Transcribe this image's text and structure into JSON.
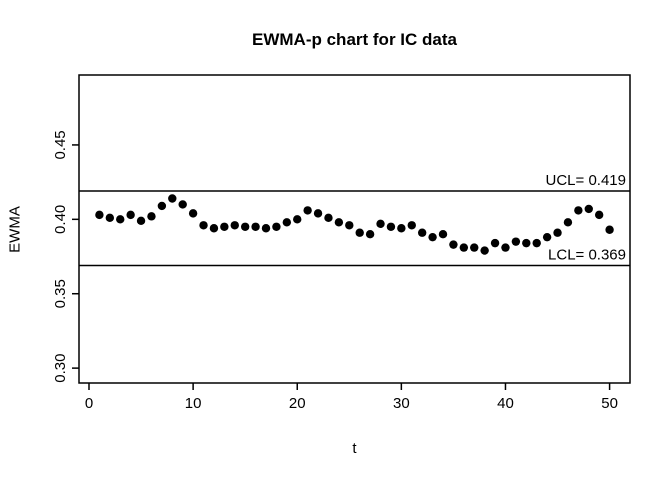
{
  "chart_data": {
    "type": "scatter",
    "title": "EWMA-p chart for IC data",
    "xlabel": "t",
    "ylabel": "EWMA",
    "x_ticks": [
      0,
      10,
      20,
      30,
      40,
      50
    ],
    "y_ticks": [
      "0.30",
      "0.35",
      "0.40",
      "0.45"
    ],
    "xlim": [
      -0.96,
      51.96
    ],
    "ylim": [
      0.29,
      0.497
    ],
    "grid": false,
    "series": [
      {
        "name": "EWMA",
        "x": [
          1,
          2,
          3,
          4,
          5,
          6,
          7,
          8,
          9,
          10,
          11,
          12,
          13,
          14,
          15,
          16,
          17,
          18,
          19,
          20,
          21,
          22,
          23,
          24,
          25,
          26,
          27,
          28,
          29,
          30,
          31,
          32,
          33,
          34,
          35,
          36,
          37,
          38,
          39,
          40,
          41,
          42,
          43,
          44,
          45,
          46,
          47,
          48,
          49,
          50
        ],
        "y": [
          0.403,
          0.401,
          0.4,
          0.403,
          0.399,
          0.402,
          0.409,
          0.414,
          0.41,
          0.404,
          0.396,
          0.394,
          0.395,
          0.396,
          0.395,
          0.395,
          0.394,
          0.395,
          0.398,
          0.4,
          0.406,
          0.404,
          0.401,
          0.398,
          0.396,
          0.391,
          0.39,
          0.397,
          0.395,
          0.394,
          0.396,
          0.391,
          0.388,
          0.39,
          0.383,
          0.381,
          0.381,
          0.379,
          0.384,
          0.381,
          0.385,
          0.384,
          0.384,
          0.388,
          0.391,
          0.398,
          0.406,
          0.407,
          0.403,
          0.393
        ]
      }
    ],
    "control_limits": {
      "ucl_value": 0.419,
      "lcl_value": 0.369,
      "ucl_label": "UCL= 0.419",
      "lcl_label": "LCL= 0.369"
    },
    "point_color": "#000000",
    "line_color": "#000000",
    "background_color": "#ffffff"
  }
}
